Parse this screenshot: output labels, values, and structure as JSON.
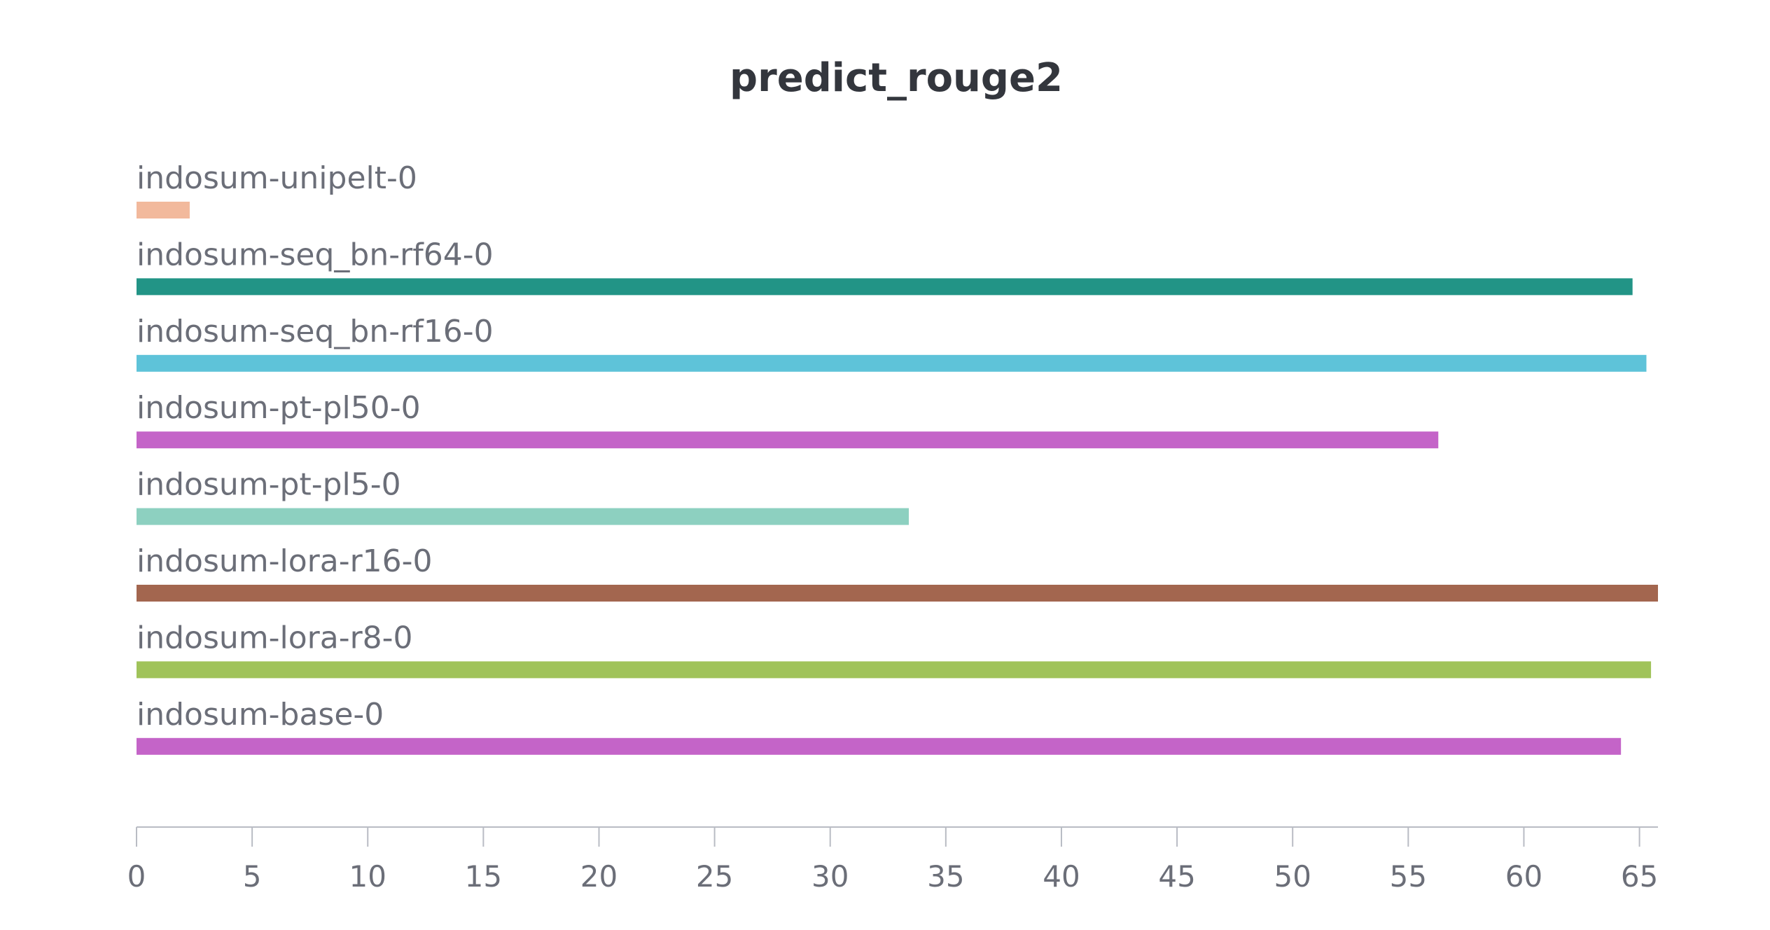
{
  "chart_data": {
    "type": "bar",
    "orientation": "horizontal",
    "title": "predict_rouge2",
    "xlabel": "",
    "ylabel": "",
    "xlim": [
      0,
      65.8
    ],
    "ticks": [
      "0",
      "5",
      "10",
      "15",
      "20",
      "25",
      "30",
      "35",
      "40",
      "45",
      "50",
      "55",
      "60",
      "65"
    ],
    "grid": false,
    "legend": "none",
    "categories": [
      "indosum-unipelt-0",
      "indosum-seq_bn-rf64-0",
      "indosum-seq_bn-rf16-0",
      "indosum-pt-pl50-0",
      "indosum-pt-pl5-0",
      "indosum-lora-r16-0",
      "indosum-lora-r8-0",
      "indosum-base-0"
    ],
    "values": [
      2.3,
      64.7,
      65.3,
      56.3,
      33.4,
      65.8,
      65.5,
      64.2
    ],
    "colors": [
      "#f2b99c",
      "#229486",
      "#5ec3d9",
      "#c464c8",
      "#8dd0c0",
      "#a3664f",
      "#a0c35a",
      "#c464c8"
    ]
  }
}
